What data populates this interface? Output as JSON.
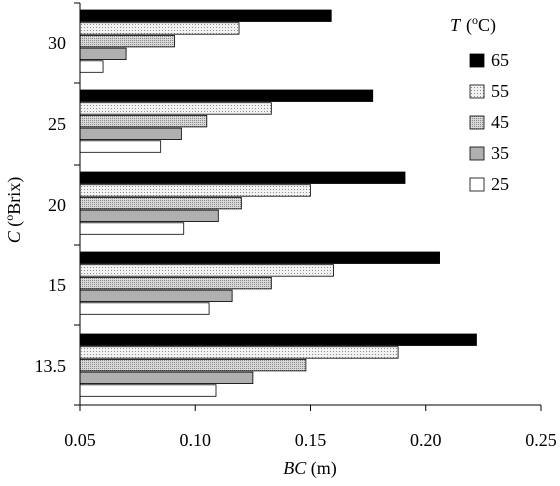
{
  "chart_data": {
    "type": "bar",
    "orientation": "horizontal",
    "categories": [
      "30",
      "25",
      "20",
      "15",
      "13.5"
    ],
    "legend_title": {
      "symbol": "T",
      "unit_open": "(",
      "unit_sup": "o",
      "unit_tail": "C)"
    },
    "series": [
      {
        "name": "65",
        "values": [
          0.159,
          0.177,
          0.191,
          0.206,
          0.222
        ]
      },
      {
        "name": "55",
        "values": [
          0.119,
          0.133,
          0.15,
          0.16,
          0.188
        ]
      },
      {
        "name": "45",
        "values": [
          0.091,
          0.105,
          0.12,
          0.133,
          0.148
        ]
      },
      {
        "name": "35",
        "values": [
          0.07,
          0.094,
          0.11,
          0.116,
          0.125
        ]
      },
      {
        "name": "25",
        "values": [
          0.06,
          0.085,
          0.095,
          0.106,
          0.109
        ]
      }
    ],
    "xlabel": {
      "italic": "BC",
      "rest": "  (m)"
    },
    "ylabel": {
      "italic": "C",
      "rest_open": " (",
      "sup": "o",
      "rest_close": "Brix)"
    },
    "xlim": [
      0.05,
      0.25
    ],
    "xticks": [
      "0.05",
      "0.10",
      "0.15",
      "0.20",
      "0.25"
    ],
    "grid": false,
    "legend_position": "top-right",
    "series_fills": [
      "#000000",
      "dots-light",
      "dots-medium",
      "#b0b0b0",
      "#ffffff"
    ]
  }
}
